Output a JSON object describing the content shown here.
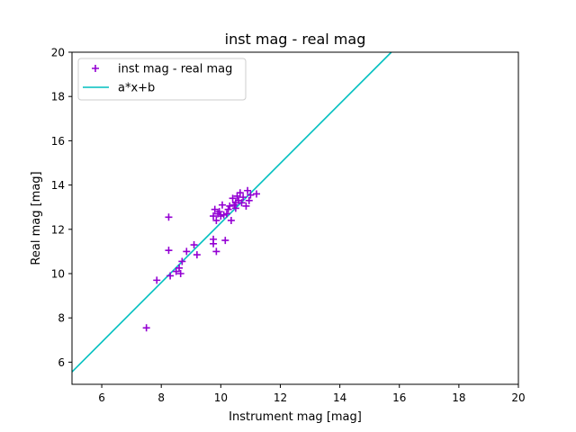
{
  "chart_data": {
    "type": "scatter",
    "title": "inst mag - real mag",
    "xlabel": "Instrument mag [mag]",
    "ylabel": "Real mag [mag]",
    "xlim": [
      5,
      20
    ],
    "ylim": [
      5,
      20
    ],
    "xticks": [
      6,
      8,
      10,
      12,
      14,
      16,
      18,
      20
    ],
    "yticks": [
      6,
      8,
      10,
      12,
      14,
      16,
      18,
      20
    ],
    "grid": false,
    "legend_position": "top-left",
    "series": [
      {
        "name": "inst mag - real mag",
        "kind": "scatter",
        "marker": "+",
        "color": "#9400D3",
        "points": [
          [
            7.5,
            7.55
          ],
          [
            7.85,
            9.7
          ],
          [
            8.25,
            12.55
          ],
          [
            8.25,
            11.05
          ],
          [
            8.3,
            9.9
          ],
          [
            8.5,
            10.1
          ],
          [
            8.6,
            10.25
          ],
          [
            8.65,
            10.0
          ],
          [
            8.7,
            10.55
          ],
          [
            8.85,
            11.0
          ],
          [
            9.1,
            11.3
          ],
          [
            9.2,
            10.85
          ],
          [
            9.75,
            11.55
          ],
          [
            9.75,
            11.35
          ],
          [
            9.75,
            12.6
          ],
          [
            9.8,
            12.9
          ],
          [
            9.85,
            11.0
          ],
          [
            9.85,
            12.4
          ],
          [
            9.9,
            12.7
          ],
          [
            9.95,
            12.8
          ],
          [
            10.0,
            12.6
          ],
          [
            10.05,
            13.1
          ],
          [
            10.1,
            12.65
          ],
          [
            10.15,
            11.5
          ],
          [
            10.2,
            12.7
          ],
          [
            10.25,
            12.9
          ],
          [
            10.3,
            13.05
          ],
          [
            10.35,
            12.4
          ],
          [
            10.4,
            13.4
          ],
          [
            10.45,
            13.1
          ],
          [
            10.5,
            13.2
          ],
          [
            10.5,
            12.95
          ],
          [
            10.55,
            13.5
          ],
          [
            10.6,
            13.3
          ],
          [
            10.65,
            13.65
          ],
          [
            10.7,
            13.2
          ],
          [
            10.75,
            13.45
          ],
          [
            10.85,
            13.05
          ],
          [
            10.9,
            13.75
          ],
          [
            10.95,
            13.3
          ],
          [
            11.0,
            13.55
          ],
          [
            11.2,
            13.6
          ]
        ]
      },
      {
        "name": "a*x+b",
        "kind": "line",
        "color": "#00BFBF",
        "points": [
          [
            5.0,
            5.56
          ],
          [
            15.73,
            20.0
          ]
        ]
      }
    ]
  }
}
